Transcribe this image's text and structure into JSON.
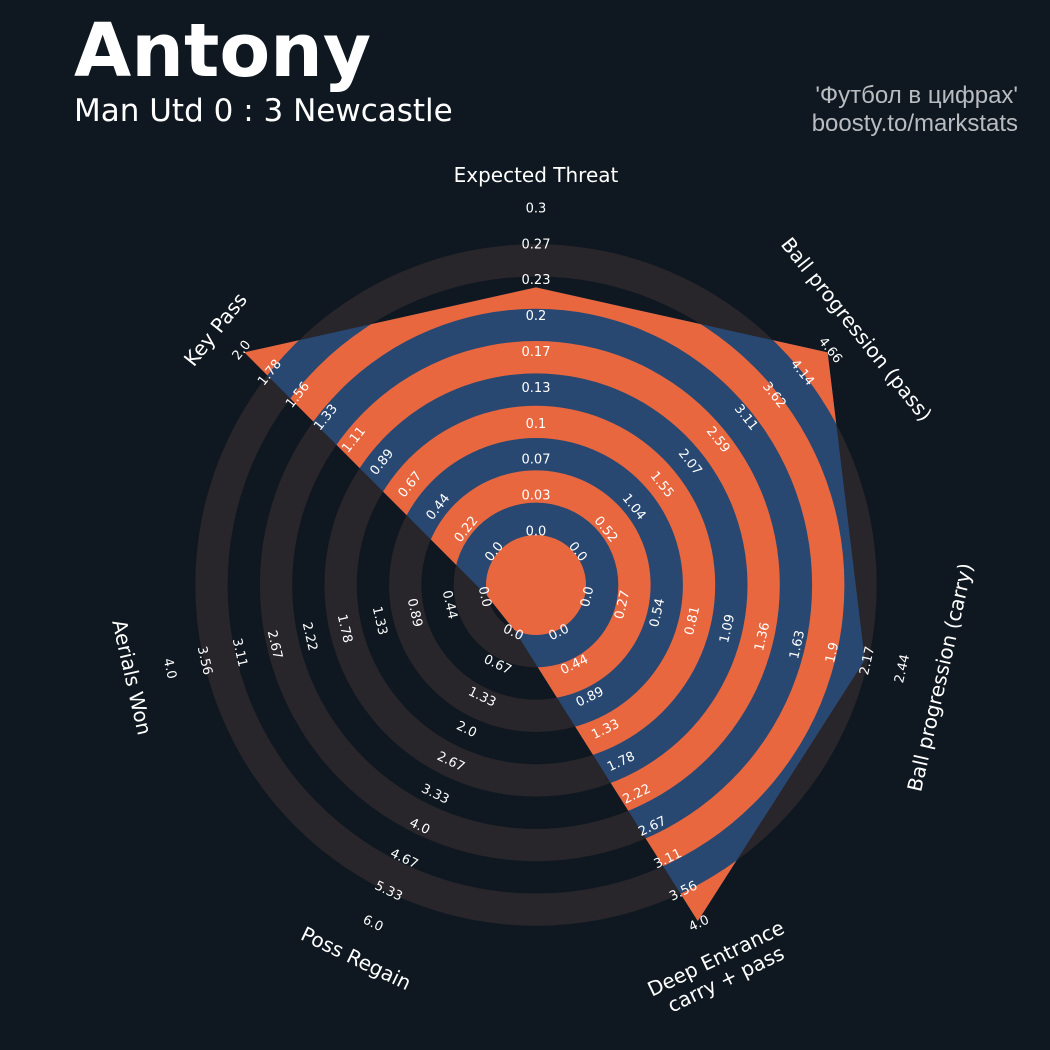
{
  "header": {
    "title": "Antony",
    "subtitle": "Man Utd 0 : 3 Newcastle",
    "credit_line1": "'Футбол в цифрах'",
    "credit_line2": "boosty.to/markstats"
  },
  "colors": {
    "background": "#0f1820",
    "ring": "#28252b",
    "player_fill": "#284872",
    "band_fill": "#e8673f",
    "text": "#ffffff"
  },
  "chart_data": {
    "type": "radar",
    "series": [
      {
        "name": "Antony",
        "values": [
          0.23,
          4.66,
          2.17,
          4.0,
          0.0,
          0.0,
          2.0
        ]
      }
    ],
    "axes": [
      {
        "label": [
          "Expected Threat"
        ],
        "ticks": [
          "0.0",
          "0.03",
          "0.07",
          "0.1",
          "0.13",
          "0.17",
          "0.2",
          "0.23",
          "0.27",
          "0.3"
        ],
        "range": [
          0,
          0.3
        ]
      },
      {
        "label": [
          "Ball progression (pass)"
        ],
        "ticks": [
          "0.0",
          "0.52",
          "1.04",
          "1.55",
          "2.07",
          "2.59",
          "3.11",
          "3.62",
          "4.14",
          "4.66"
        ],
        "range": [
          0,
          4.66
        ]
      },
      {
        "label": [
          "Ball progression (carry)"
        ],
        "ticks": [
          "0.0",
          "0.27",
          "0.54",
          "0.81",
          "1.09",
          "1.36",
          "1.63",
          "1.9",
          "2.17",
          "2.44"
        ],
        "range": [
          0,
          2.44
        ]
      },
      {
        "label": [
          "Deep Entrance",
          "carry + pass"
        ],
        "ticks": [
          "0.0",
          "0.44",
          "0.89",
          "1.33",
          "1.78",
          "2.22",
          "2.67",
          "3.11",
          "3.56",
          "4.0"
        ],
        "range": [
          0,
          4.0
        ]
      },
      {
        "label": [
          "Poss Regain"
        ],
        "ticks": [
          "0.0",
          "0.67",
          "1.33",
          "2.0",
          "2.67",
          "3.33",
          "4.0",
          "4.67",
          "5.33",
          "6.0"
        ],
        "range": [
          0,
          6.0
        ]
      },
      {
        "label": [
          "Aerials Won"
        ],
        "ticks": [
          "0.0",
          "0.44",
          "0.89",
          "1.33",
          "1.78",
          "2.22",
          "2.67",
          "3.11",
          "3.56",
          "4.0"
        ],
        "range": [
          0,
          4.0
        ]
      },
      {
        "label": [
          "Key Pass"
        ],
        "ticks": [
          "0.0",
          "0.22",
          "0.44",
          "0.67",
          "0.89",
          "1.11",
          "1.33",
          "1.56",
          "1.78",
          "2.0"
        ],
        "range": [
          0,
          2.0
        ]
      }
    ]
  }
}
